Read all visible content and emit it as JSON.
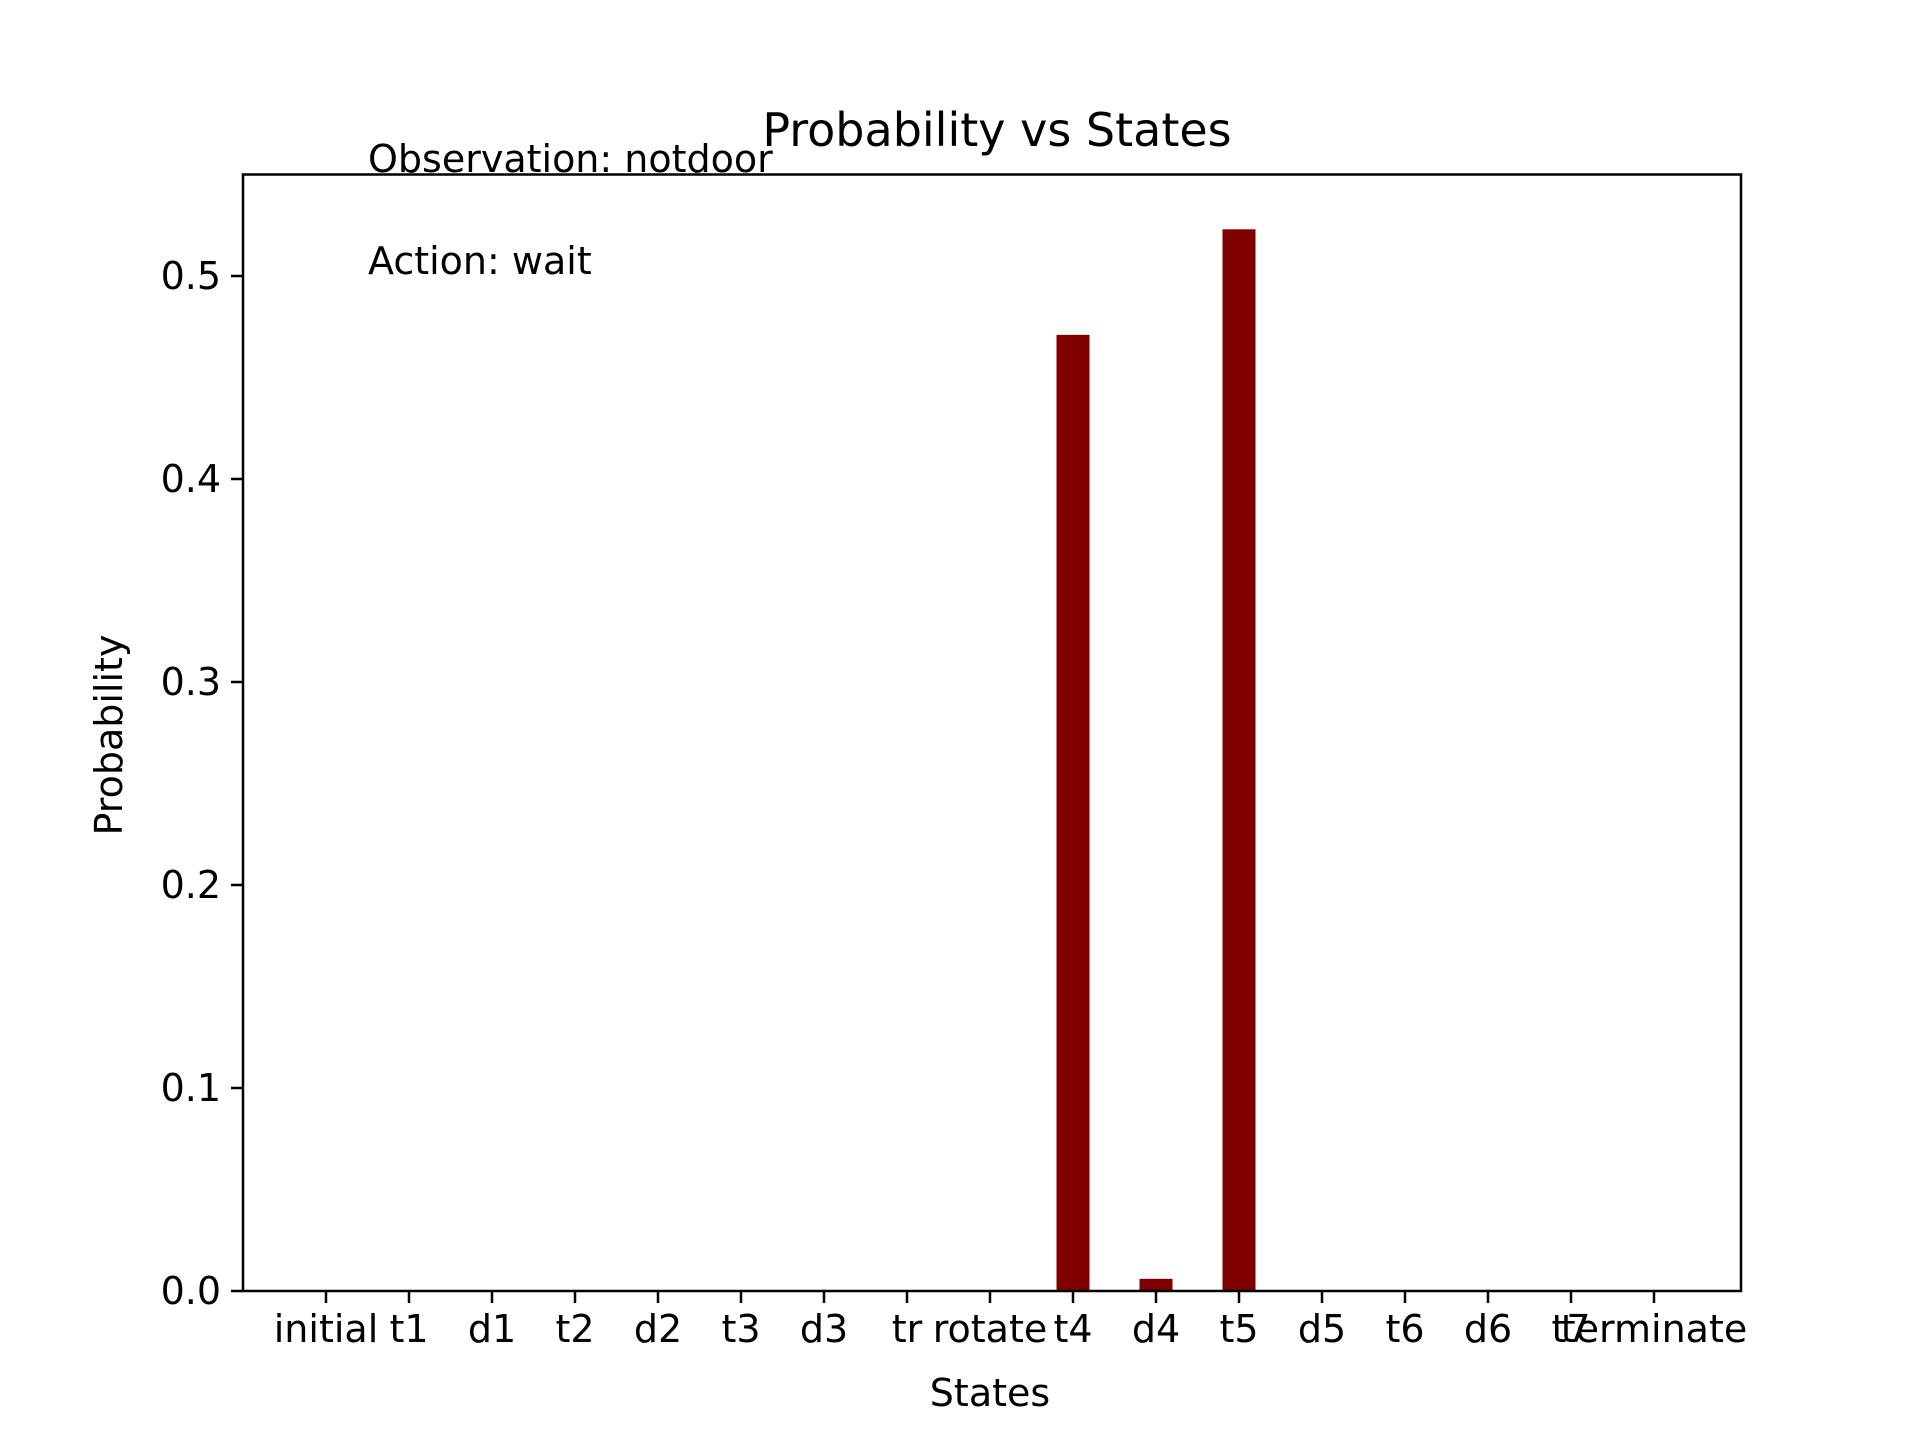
{
  "chart_data": {
    "type": "bar",
    "title": "Probability vs States",
    "xlabel": "States",
    "ylabel": "Probability",
    "annotations": [
      "Observation: notdoor",
      "Action: wait"
    ],
    "categories": [
      "initial",
      "t1",
      "d1",
      "t2",
      "d2",
      "t3",
      "d3",
      "tr",
      "rotate",
      "t4",
      "d4",
      "t5",
      "d5",
      "t6",
      "d6",
      "t7",
      "terminate"
    ],
    "values": [
      0,
      0,
      0,
      0,
      0,
      0,
      0,
      0,
      0,
      0.471,
      0.006,
      0.523,
      0,
      0,
      0,
      0,
      0
    ],
    "ylim": [
      0,
      0.55
    ],
    "yticks": [
      0.0,
      0.1,
      0.2,
      0.3,
      0.4,
      0.5
    ],
    "ytick_labels": [
      "0.0",
      "0.1",
      "0.2",
      "0.3",
      "0.4",
      "0.5"
    ],
    "bar_color": "#800000",
    "grid": false,
    "legend": "none"
  }
}
